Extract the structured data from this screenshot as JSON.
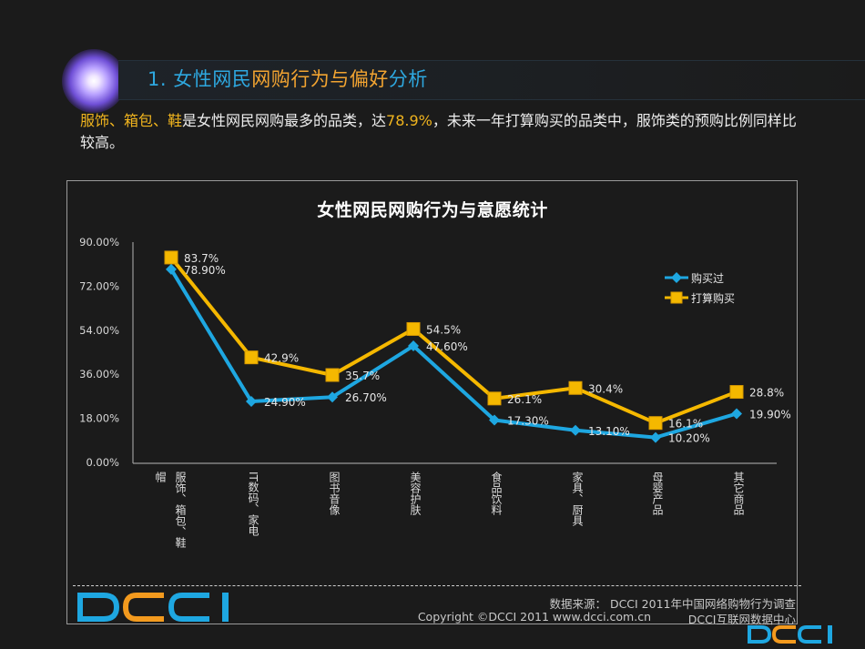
{
  "header": {
    "title_parts": [
      {
        "text": "1. 女性网民",
        "color": "#2ea8e0"
      },
      {
        "text": "网购行为与偏好",
        "color": "#f2a431"
      },
      {
        "text": "分析",
        "color": "#2ea8e0"
      }
    ]
  },
  "intro": {
    "highlight_1": "服饰、箱包、鞋",
    "text_1": "是女性网民网购最多的品类，达",
    "highlight_2": "78.9%",
    "text_2": "，未来一年打算购买的品类中，服饰类的预购比例同样比较高。"
  },
  "chart_data": {
    "type": "line",
    "title": "女性网民网购行为与意愿统计",
    "xlabel": "",
    "ylabel": "",
    "ylim": [
      0,
      90
    ],
    "yticks": [
      "0.00%",
      "18.00%",
      "36.00%",
      "54.00%",
      "72.00%",
      "90.00%"
    ],
    "grid": false,
    "legend_position": "upper-right",
    "categories": [
      "服饰、箱包、鞋帽",
      "IT数码、家电",
      "图书音像",
      "美容护肤",
      "食品饮料",
      "家具、厨具",
      "母婴产品",
      "其它商品"
    ],
    "series": [
      {
        "name": "购买过",
        "color": "#1ea7e1",
        "marker": "diamond",
        "values": [
          78.9,
          24.9,
          26.7,
          47.6,
          17.3,
          13.1,
          10.2,
          19.9
        ],
        "labels": [
          "78.90%",
          "24.90%",
          "26.70%",
          "47.60%",
          "17.30%",
          "13.10%",
          "10.20%",
          "19.90%"
        ]
      },
      {
        "name": "打算购买",
        "color": "#f5b800",
        "marker": "square",
        "values": [
          83.7,
          42.9,
          35.7,
          54.5,
          26.1,
          30.4,
          16.1,
          28.8
        ],
        "labels": [
          "83.7%",
          "42.9%",
          "35.7%",
          "54.5%",
          "26.1%",
          "30.4%",
          "16.1%",
          "28.8%"
        ]
      }
    ]
  },
  "x_labels": {
    "c0_a": "服饰、箱包、鞋",
    "c0_b": "帽",
    "c1": "IT数码、家电",
    "c2": "图书音像",
    "c3": "美容护肤",
    "c4": "食品饮料",
    "c5": "家具、厨具",
    "c6": "母婴产品",
    "c7": "其它商品"
  },
  "footer": {
    "source": "数据来源： DCCI 2011年中国网络购物行为调查",
    "copyright": "Copyright ©DCCI 2011 www.dcci.com.cn",
    "center": "DCCI互联网数据中心",
    "logo_text": "DCCI",
    "logo_colors": {
      "d": "#1ea7e1",
      "c1": "#f39a1e",
      "c2": "#1ea7e1",
      "i": "#1ea7e1"
    }
  }
}
